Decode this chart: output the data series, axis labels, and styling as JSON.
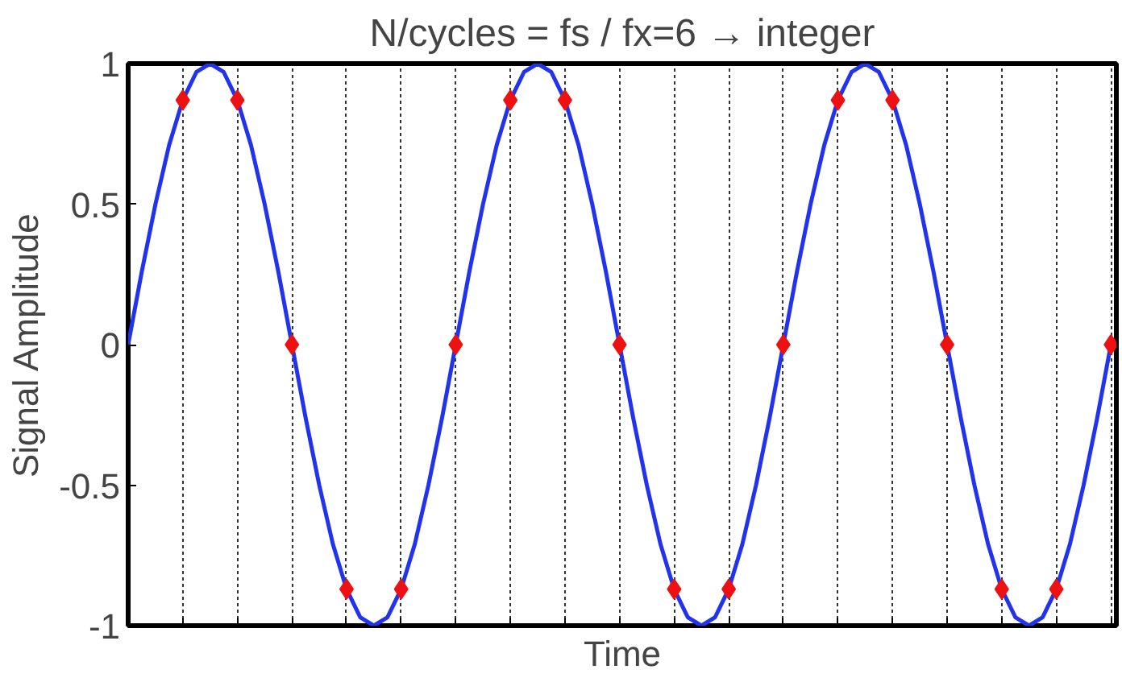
{
  "chart_data": {
    "type": "line",
    "title": "N/cycles = fs / fx=6 → integer",
    "xlabel": "Time",
    "ylabel": "Signal Amplitude",
    "categories": [
      null,
      null,
      null,
      null,
      null,
      null,
      null,
      null,
      null,
      null,
      null,
      null,
      null,
      null,
      null,
      null,
      null,
      null,
      null,
      null,
      null,
      null,
      null,
      null,
      null,
      null,
      null,
      null,
      null,
      null,
      null,
      null,
      null,
      null,
      null,
      null,
      null,
      null,
      null,
      null,
      null,
      null,
      null,
      null,
      null,
      null,
      null,
      null,
      null,
      null,
      null,
      null,
      null,
      null,
      null,
      null,
      null,
      null,
      null,
      null,
      null,
      null,
      null,
      null,
      null,
      null,
      null,
      null,
      null,
      null,
      null,
      null,
      null
    ],
    "ylim": [
      -1,
      1
    ],
    "yticks": [
      -1,
      -0.5,
      0,
      0.5,
      1
    ],
    "grid": "x",
    "series": [
      {
        "color": "#2233ee",
        "values": [
          0,
          0.26,
          0.5,
          0.71,
          0.87,
          0.97,
          1,
          0.97,
          0.87,
          0.71,
          0.5,
          0.26,
          0,
          -0.26,
          -0.5,
          -0.71,
          -0.87,
          -0.97,
          -1,
          -0.97,
          -0.87,
          -0.71,
          -0.5,
          -0.26,
          0,
          0.26,
          0.5,
          0.71,
          0.87,
          0.97,
          1,
          0.97,
          0.87,
          0.71,
          0.5,
          0.26,
          0,
          -0.26,
          -0.5,
          -0.71,
          -0.87,
          -0.97,
          -1,
          -0.97,
          -0.87,
          -0.71,
          -0.5,
          -0.26,
          0,
          0.26,
          0.5,
          0.71,
          0.87,
          0.97,
          1,
          0.97,
          0.87,
          0.71,
          0.5,
          0.26,
          0,
          -0.26,
          -0.5,
          -0.71,
          -0.87,
          -0.97,
          -1,
          -0.97,
          -0.87,
          -0.71,
          -0.5,
          -0.26,
          0
        ]
      },
      {
        "type": "scatter",
        "color": "#ee1111",
        "marker": "diamond",
        "values": [
          null,
          null,
          null,
          null,
          0.87,
          null,
          null,
          null,
          0.87,
          null,
          null,
          null,
          0,
          null,
          null,
          null,
          -0.87,
          null,
          null,
          null,
          -0.87,
          null,
          null,
          null,
          0,
          null,
          null,
          null,
          0.87,
          null,
          null,
          null,
          0.87,
          null,
          null,
          null,
          0,
          null,
          null,
          null,
          -0.87,
          null,
          null,
          null,
          -0.87,
          null,
          null,
          null,
          0,
          null,
          null,
          null,
          0.87,
          null,
          null,
          null,
          0.87,
          null,
          null,
          null,
          0,
          null,
          null,
          null,
          -0.87,
          null,
          null,
          null,
          -0.87,
          null,
          null,
          null,
          0
        ]
      }
    ]
  }
}
